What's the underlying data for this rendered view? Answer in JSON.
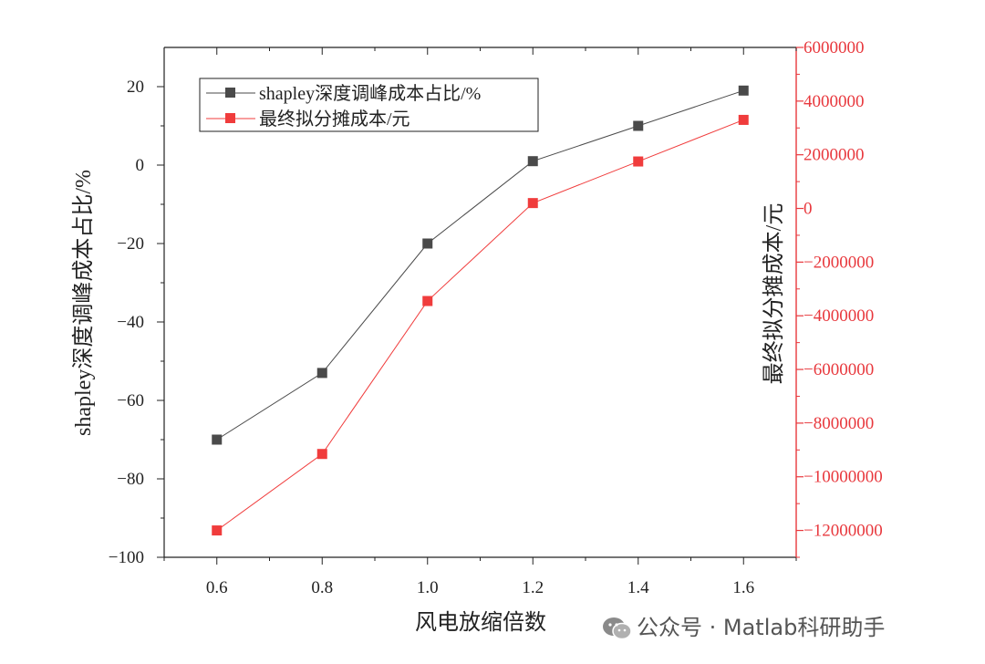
{
  "chart_data": {
    "type": "line",
    "x": [
      0.6,
      0.8,
      1.0,
      1.2,
      1.4,
      1.6
    ],
    "x_ticks": [
      "0.6",
      "0.8",
      "1.0",
      "1.2",
      "1.4",
      "1.6"
    ],
    "xlim": [
      0.5,
      1.7
    ],
    "xlabel": "风电放缩倍数",
    "y_left": {
      "label": "shapley深度调峰成本占比/%",
      "lim": [
        -100,
        30
      ],
      "ticks": [
        -100,
        -80,
        -60,
        -40,
        -20,
        0,
        20
      ],
      "tick_labels": [
        "−100",
        "−80",
        "−60",
        "−40",
        "−20",
        "0",
        "20"
      ],
      "color": "#222222"
    },
    "y_right": {
      "label": "最终拟分摊成本/元",
      "lim": [
        -13000000,
        6000000
      ],
      "ticks": [
        -12000000,
        -10000000,
        -8000000,
        -6000000,
        -4000000,
        -2000000,
        0,
        2000000,
        4000000,
        6000000
      ],
      "tick_labels": [
        "−12000000",
        "−10000000",
        "−8000000",
        "−6000000",
        "−4000000",
        "−2000000",
        "0",
        "2000000",
        "4000000",
        "6000000"
      ],
      "color": "#e8383d"
    },
    "series": [
      {
        "name": "shapley深度调峰成本占比/%",
        "axis": "left",
        "color": "#4a4a4a",
        "marker": "square",
        "values": [
          -70,
          -53,
          -20,
          1,
          10,
          19
        ]
      },
      {
        "name": "最终拟分摊成本/元",
        "axis": "right",
        "color": "#f03c3c",
        "marker": "square",
        "values": [
          -12000000,
          -9150000,
          -3450000,
          200000,
          1750000,
          3300000
        ]
      }
    ],
    "legend_position": "top-left",
    "grid": false
  },
  "watermark": {
    "text": "公众号 · Matlab科研助手",
    "icon": "wechat-icon"
  }
}
